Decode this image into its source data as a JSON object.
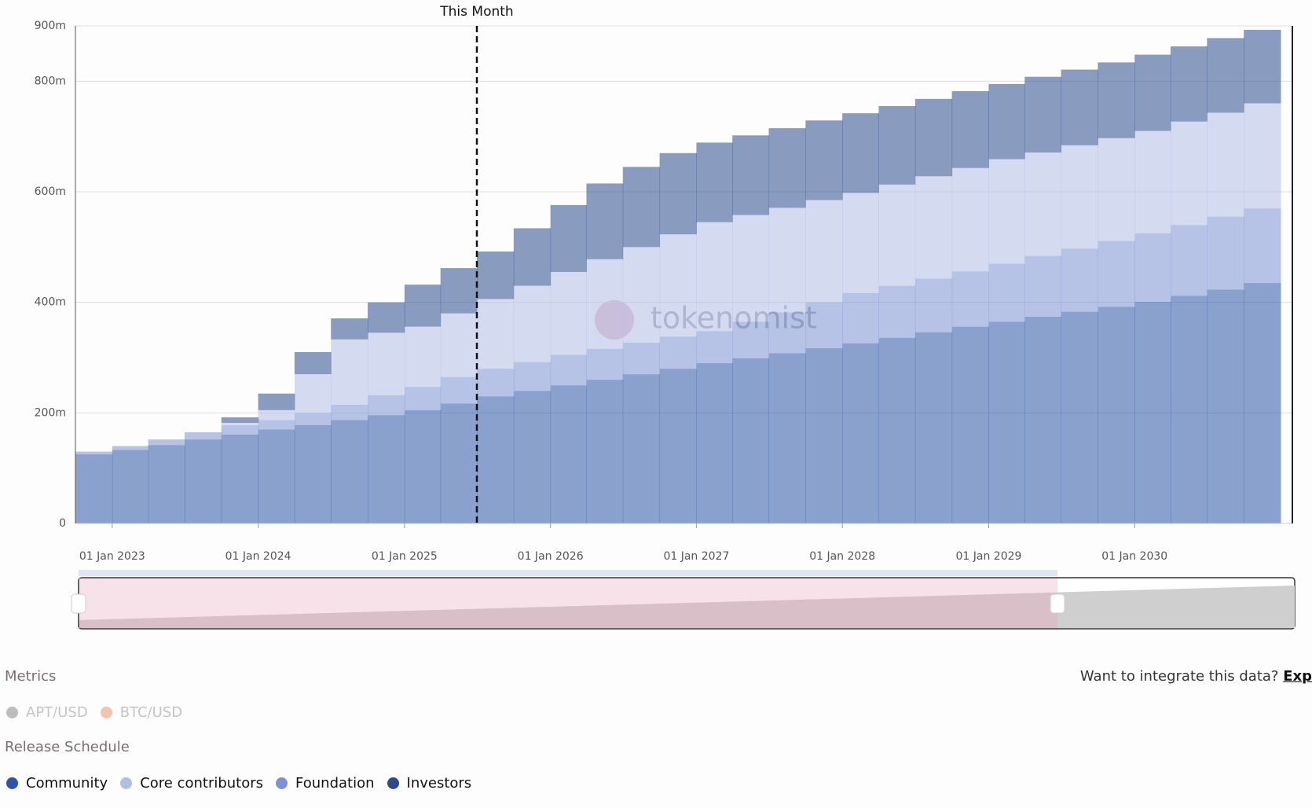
{
  "chart_data": {
    "type": "stacked-step-area",
    "x": [
      "2022-10-01",
      "2023-01-01",
      "2023-04-01",
      "2023-07-01",
      "2023-10-01",
      "2024-01-01",
      "2024-04-01",
      "2024-07-01",
      "2024-10-01",
      "2025-01-01",
      "2025-04-01",
      "2025-07-01",
      "2025-10-01",
      "2026-01-01",
      "2026-04-01",
      "2026-07-01",
      "2026-10-01",
      "2027-01-01",
      "2027-04-01",
      "2027-07-01",
      "2027-10-01",
      "2028-01-01",
      "2028-04-01",
      "2028-07-01",
      "2028-10-01",
      "2029-01-01",
      "2029-04-01",
      "2029-07-01",
      "2029-10-01",
      "2030-01-01",
      "2030-04-01",
      "2030-07-01",
      "2030-10-01"
    ],
    "series": [
      {
        "name": "Community",
        "color": "#2d55a6",
        "values": [
          125,
          133,
          142,
          152,
          161,
          170,
          178,
          187,
          196,
          205,
          217,
          230,
          240,
          250,
          260,
          270,
          280,
          290,
          299,
          308,
          317,
          326,
          336,
          346,
          356,
          365,
          374,
          383,
          392,
          401,
          412,
          423,
          435
        ]
      },
      {
        "name": "Foundation",
        "color": "#7b93d4",
        "values": [
          5,
          7,
          10,
          13,
          17,
          17,
          22,
          28,
          36,
          42,
          48,
          50,
          52,
          55,
          56,
          57,
          58,
          58,
          66,
          74,
          83,
          91,
          94,
          97,
          100,
          105,
          110,
          114,
          119,
          124,
          128,
          132,
          135
        ]
      },
      {
        "name": "Core contributors",
        "color": "#b3bee6",
        "values": [
          0,
          0,
          0,
          0,
          4,
          18,
          70,
          118,
          113,
          109,
          115,
          126,
          138,
          150,
          162,
          173,
          185,
          197,
          193,
          189,
          185,
          181,
          183,
          185,
          187,
          189,
          187,
          187,
          186,
          185,
          187,
          188,
          190
        ]
      },
      {
        "name": "Investors",
        "color": "#2a4a8c",
        "values": [
          0,
          0,
          0,
          0,
          10,
          30,
          40,
          38,
          55,
          76,
          82,
          86,
          104,
          121,
          137,
          145,
          147,
          144,
          144,
          144,
          144,
          144,
          142,
          140,
          139,
          136,
          137,
          137,
          137,
          138,
          136,
          135,
          133
        ]
      }
    ],
    "legend_order": [
      0,
      2,
      1,
      3
    ],
    "xlim": [
      "2022-10-01",
      "2031-01-01"
    ],
    "xticks": [
      {
        "value": "2023-01-01",
        "label": "01 Jan 2023"
      },
      {
        "value": "2024-01-01",
        "label": "01 Jan 2024"
      },
      {
        "value": "2025-01-01",
        "label": "01 Jan 2025"
      },
      {
        "value": "2026-01-01",
        "label": "01 Jan 2026"
      },
      {
        "value": "2027-01-01",
        "label": "01 Jan 2027"
      },
      {
        "value": "2028-01-01",
        "label": "01 Jan 2028"
      },
      {
        "value": "2029-01-01",
        "label": "01 Jan 2029"
      },
      {
        "value": "2030-01-01",
        "label": "01 Jan 2030"
      }
    ],
    "ylim": [
      0,
      900
    ],
    "yticks": [
      0,
      {
        "value": 200,
        "label": "200m"
      },
      {
        "value": 400,
        "label": "400m"
      },
      {
        "value": 600,
        "label": "600m"
      },
      {
        "value": 800,
        "label": "800m"
      },
      {
        "value": 900,
        "label": "900m"
      }
    ],
    "grid": true,
    "annotation": {
      "label": "This Month",
      "x": "2025-07-01"
    },
    "watermark": "tokenomist"
  },
  "metrics": {
    "title": "Metrics",
    "items": [
      {
        "name": "APT/USD",
        "color": "#bdbdbd"
      },
      {
        "name": "BTC/USD",
        "color": "#f3c3ae"
      }
    ]
  },
  "release_schedule_title": "Release Schedule",
  "integrate": {
    "text": "Want to integrate this data?",
    "link": "Exp"
  }
}
